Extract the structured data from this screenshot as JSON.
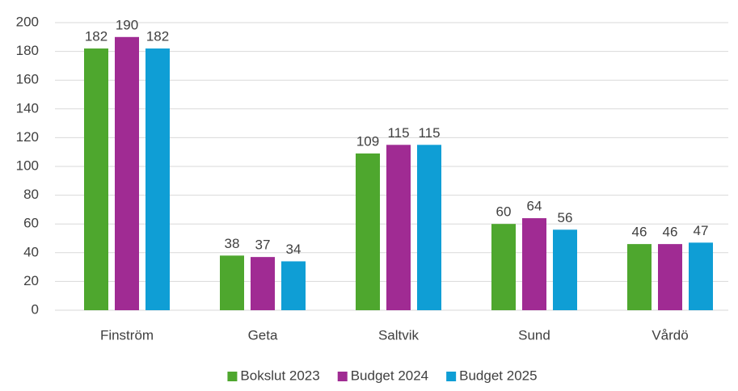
{
  "chart_data": {
    "type": "bar",
    "categories": [
      "Finström",
      "Geta",
      "Saltvik",
      "Sund",
      "Vårdö"
    ],
    "series": [
      {
        "name": "Bokslut 2023",
        "color": "#4ea72e",
        "values": [
          182,
          38,
          109,
          60,
          46
        ]
      },
      {
        "name": "Budget 2024",
        "color": "#a02b93",
        "values": [
          190,
          37,
          115,
          64,
          46
        ]
      },
      {
        "name": "Budget 2025",
        "color": "#0f9ed5",
        "values": [
          182,
          34,
          115,
          56,
          47
        ]
      }
    ],
    "ylim": [
      0,
      200
    ],
    "yticks": [
      0,
      20,
      40,
      60,
      80,
      100,
      120,
      140,
      160,
      180,
      200
    ],
    "grid": true,
    "legend": "bottom"
  }
}
